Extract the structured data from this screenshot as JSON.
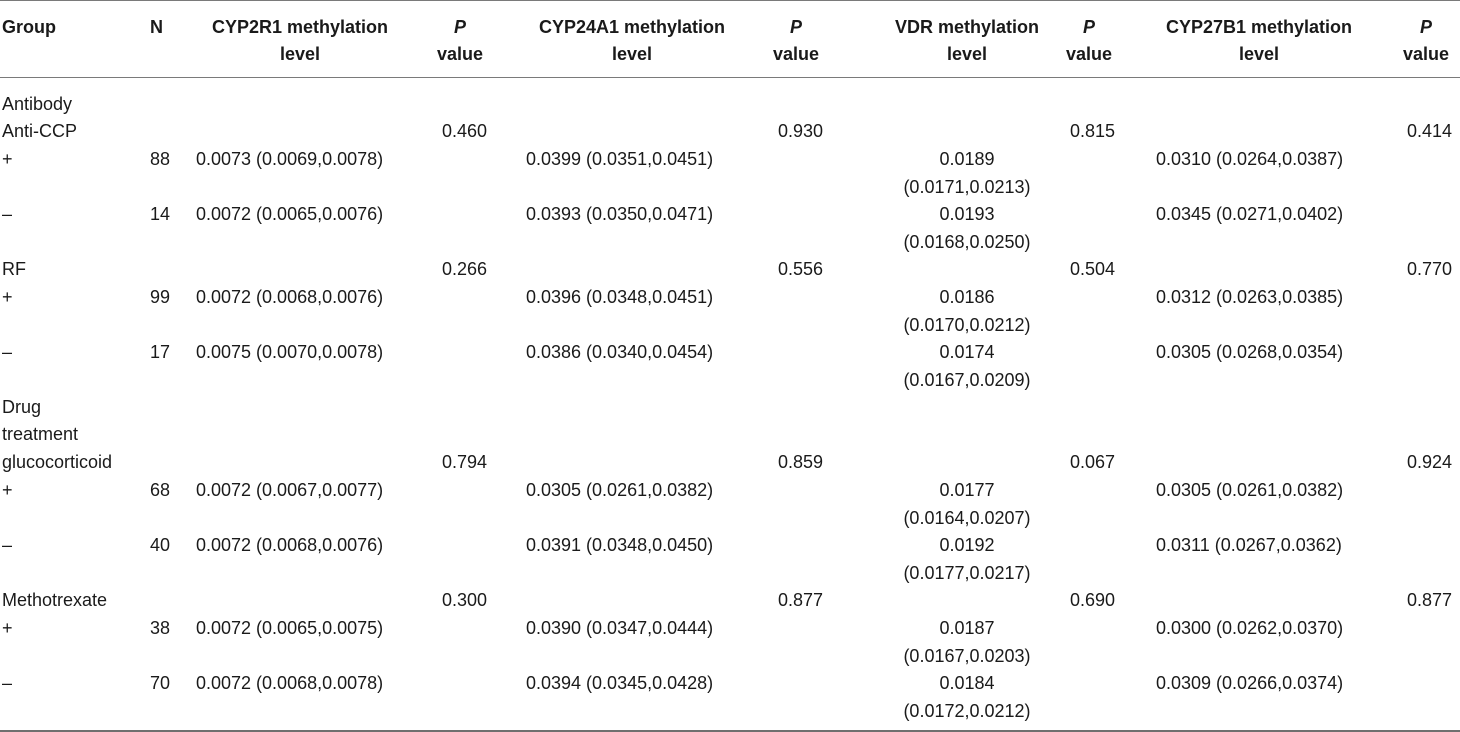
{
  "header": {
    "group": "Group",
    "n": "N",
    "m1_line1": "CYP2R1 methylation",
    "m1_line2": "level",
    "m2_line1": "CYP24A1 methylation",
    "m2_line2": "level",
    "m3_line1": "VDR methylation",
    "m3_line2": "level",
    "m4_line1": "CYP27B1 methylation",
    "m4_line2": "level",
    "p_letter": "P",
    "p_word": "value"
  },
  "rows": [
    {
      "label": "Antibody",
      "n": "",
      "m1": "",
      "p1": "",
      "m2": "",
      "p2": "",
      "m3a": "",
      "m3b": "",
      "p3": "",
      "m4": "",
      "p4": ""
    },
    {
      "label": "Anti-CCP",
      "n": "",
      "m1": "",
      "p1": "0.460",
      "m2": "",
      "p2": "0.930",
      "m3a": "",
      "m3b": "",
      "p3": "0.815",
      "m4": "",
      "p4": "0.414"
    },
    {
      "label": "+",
      "n": "88",
      "m1": "0.0073 (0.0069,0.0078)",
      "p1": "",
      "m2": "0.0399 (0.0351,0.0451)",
      "p2": "",
      "m3a": "0.0189",
      "m3b": "(0.0171,0.0213)",
      "p3": "",
      "m4": "0.0310 (0.0264,0.0387)",
      "p4": ""
    },
    {
      "label": "–",
      "n": "14",
      "m1": "0.0072 (0.0065,0.0076)",
      "p1": "",
      "m2": "0.0393 (0.0350,0.0471)",
      "p2": "",
      "m3a": "0.0193",
      "m3b": "(0.0168,0.0250)",
      "p3": "",
      "m4": "0.0345 (0.0271,0.0402)",
      "p4": ""
    },
    {
      "label": "RF",
      "n": "",
      "m1": "",
      "p1": "0.266",
      "m2": "",
      "p2": "0.556",
      "m3a": "",
      "m3b": "",
      "p3": "0.504",
      "m4": "",
      "p4": "0.770"
    },
    {
      "label": "+",
      "n": "99",
      "m1": "0.0072 (0.0068,0.0076)",
      "p1": "",
      "m2": "0.0396 (0.0348,0.0451)",
      "p2": "",
      "m3a": "0.0186",
      "m3b": "(0.0170,0.0212)",
      "p3": "",
      "m4": "0.0312 (0.0263,0.0385)",
      "p4": ""
    },
    {
      "label": "–",
      "n": "17",
      "m1": "0.0075 (0.0070,0.0078)",
      "p1": "",
      "m2": "0.0386 (0.0340,0.0454)",
      "p2": "",
      "m3a": "0.0174",
      "m3b": "(0.0167,0.0209)",
      "p3": "",
      "m4": "0.0305 (0.0268,0.0354)",
      "p4": ""
    },
    {
      "label": "Drug",
      "n": "",
      "m1": "",
      "p1": "",
      "m2": "",
      "p2": "",
      "m3a": "",
      "m3b": "",
      "p3": "",
      "m4": "",
      "p4": ""
    },
    {
      "label": "treatment",
      "n": "",
      "m1": "",
      "p1": "",
      "m2": "",
      "p2": "",
      "m3a": "",
      "m3b": "",
      "p3": "",
      "m4": "",
      "p4": ""
    },
    {
      "label": "glucocorticoid",
      "n": "",
      "m1": "",
      "p1": "0.794",
      "m2": "",
      "p2": "0.859",
      "m3a": "",
      "m3b": "",
      "p3": "0.067",
      "m4": "",
      "p4": "0.924"
    },
    {
      "label": "+",
      "n": "68",
      "m1": "0.0072 (0.0067,0.0077)",
      "p1": "",
      "m2": "0.0305 (0.0261,0.0382)",
      "p2": "",
      "m3a": "0.0177",
      "m3b": "(0.0164,0.0207)",
      "p3": "",
      "m4": "0.0305 (0.0261,0.0382)",
      "p4": ""
    },
    {
      "label": "–",
      "n": "40",
      "m1": "0.0072 (0.0068,0.0076)",
      "p1": "",
      "m2": "0.0391 (0.0348,0.0450)",
      "p2": "",
      "m3a": "0.0192",
      "m3b": "(0.0177,0.0217)",
      "p3": "",
      "m4": "0.0311 (0.0267,0.0362)",
      "p4": ""
    },
    {
      "label": "Methotrexate",
      "n": "",
      "m1": "",
      "p1": "0.300",
      "m2": "",
      "p2": "0.877",
      "m3a": "",
      "m3b": "",
      "p3": "0.690",
      "m4": "",
      "p4": "0.877"
    },
    {
      "label": "+",
      "n": "38",
      "m1": "0.0072 (0.0065,0.0075)",
      "p1": "",
      "m2": "0.0390 (0.0347,0.0444)",
      "p2": "",
      "m3a": "0.0187",
      "m3b": "(0.0167,0.0203)",
      "p3": "",
      "m4": "0.0300 (0.0262,0.0370)",
      "p4": ""
    },
    {
      "label": "–",
      "n": "70",
      "m1": "0.0072 (0.0068,0.0078)",
      "p1": "",
      "m2": "0.0394 (0.0345,0.0428)",
      "p2": "",
      "m3a": "0.0184",
      "m3b": "(0.0172,0.0212)",
      "p3": "",
      "m4": "0.0309 (0.0266,0.0374)",
      "p4": ""
    }
  ]
}
